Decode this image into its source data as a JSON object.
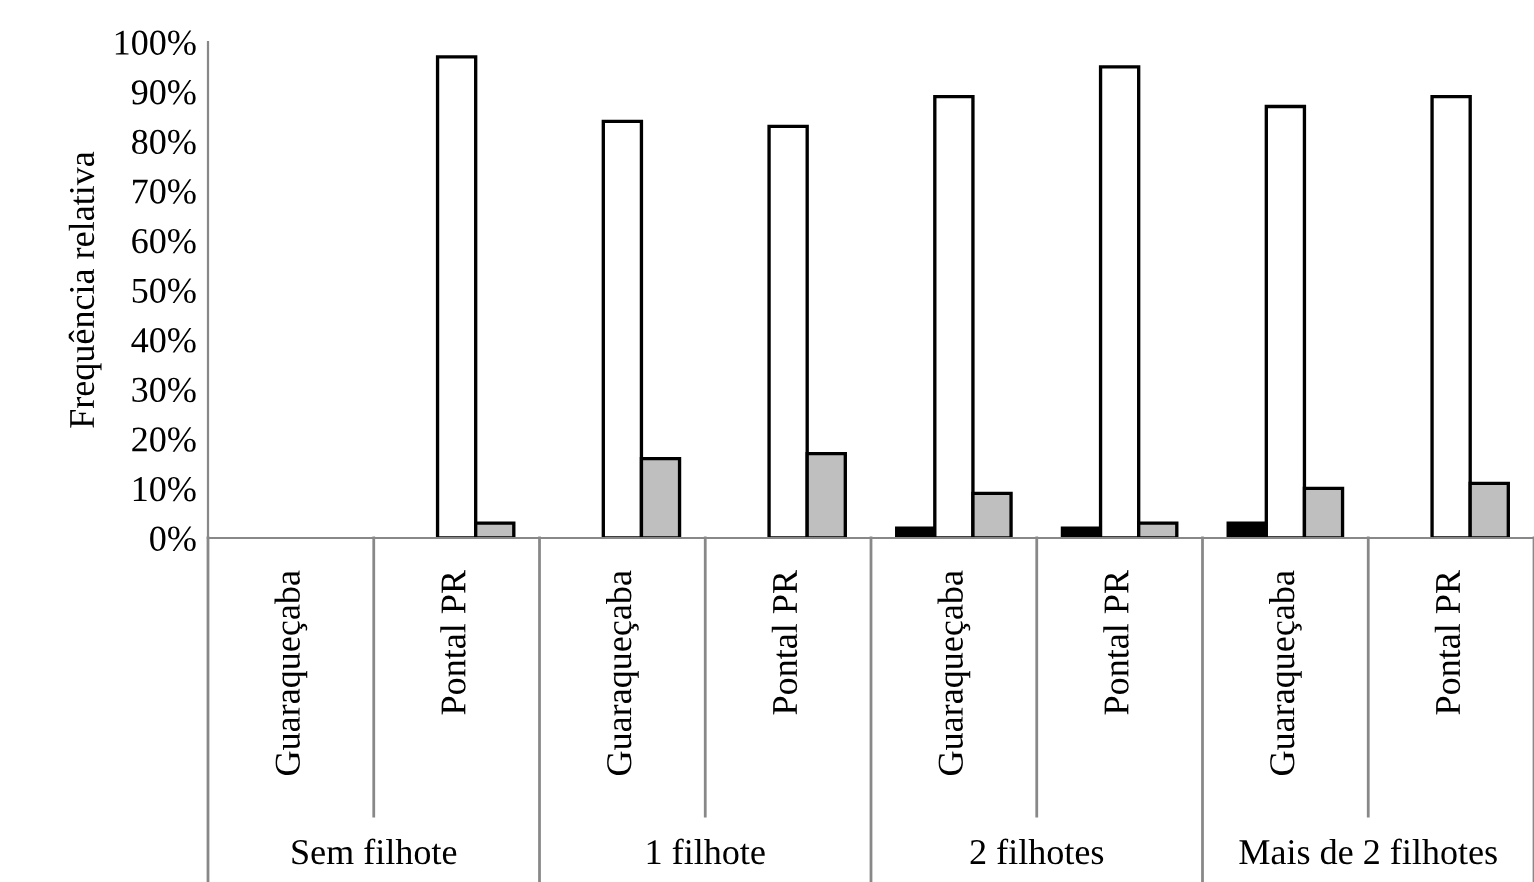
{
  "chart_data": {
    "type": "bar",
    "ylabel": "Frequência relativa",
    "categories": [
      "Guaraqueçaba",
      "Pontal PR",
      "Guaraqueçaba",
      "Pontal PR",
      "Guaraqueçaba",
      "Pontal PR",
      "Guaraqueçaba",
      "Pontal PR"
    ],
    "series": [
      {
        "color": "#000000",
        "values": [
          0,
          0,
          0,
          0,
          2,
          2,
          3,
          0
        ]
      },
      {
        "color": "#ffffff",
        "values": [
          0,
          97,
          84,
          83,
          89,
          95,
          87,
          89
        ]
      },
      {
        "color": "#bfbfbf",
        "values": [
          0,
          3,
          16,
          17,
          9,
          3,
          10,
          11
        ]
      }
    ],
    "annotations": [
      "Sem filhote",
      "1 filhote",
      "2 filhotes",
      "Mais de 2 filhotes"
    ],
    "ylim": [
      0,
      100
    ],
    "yticks": [
      {
        "value": 0,
        "label": "0%"
      },
      {
        "value": 10,
        "label": "10%"
      },
      {
        "value": 20,
        "label": "20%"
      },
      {
        "value": 30,
        "label": "30%"
      },
      {
        "value": 40,
        "label": "40%"
      },
      {
        "value": 50,
        "label": "50%"
      },
      {
        "value": 60,
        "label": "60%"
      },
      {
        "value": 70,
        "label": "70%"
      },
      {
        "value": 80,
        "label": "80%"
      },
      {
        "value": 90,
        "label": "90%"
      },
      {
        "value": 100,
        "label": "100%"
      }
    ],
    "grid": false,
    "legend": false
  }
}
